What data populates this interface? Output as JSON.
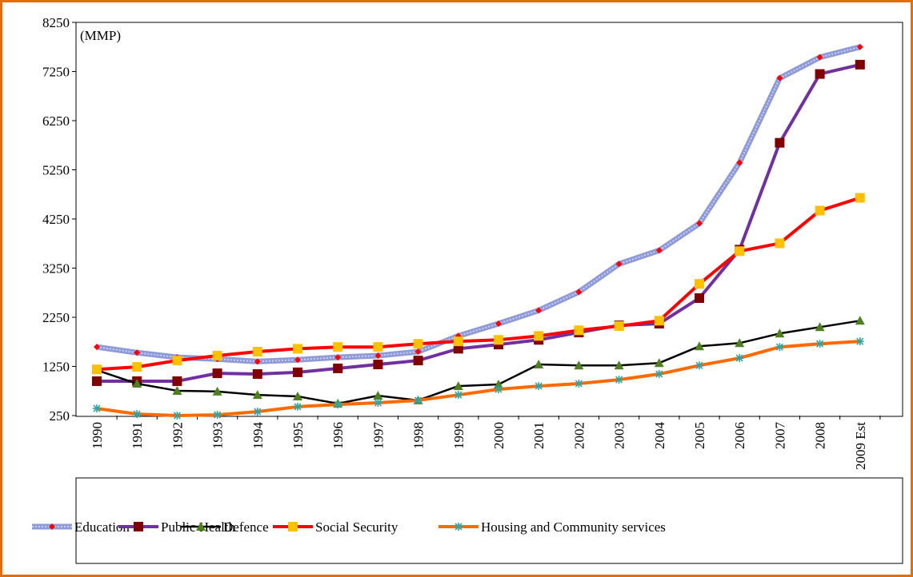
{
  "chart_data": {
    "type": "line",
    "y_label": "(MMP)",
    "categories": [
      "1990",
      "1991",
      "1992",
      "1993",
      "1994",
      "1995",
      "1996",
      "1997",
      "1998",
      "1999",
      "2000",
      "2001",
      "2002",
      "2003",
      "2004",
      "2005",
      "2006",
      "2007",
      "2008",
      "2009 Est"
    ],
    "series": [
      {
        "name": "Education",
        "color": "#8e9ad8",
        "marker": "diamond",
        "marker_color": "#ff0000",
        "values": [
          1646,
          1530,
          1435,
          1400,
          1350,
          1385,
          1435,
          1470,
          1550,
          1870,
          2120,
          2390,
          2765,
          3335,
          3610,
          4160,
          5395,
          7115,
          7540,
          7750
        ]
      },
      {
        "name": "Public Health",
        "color": "#7030a0",
        "marker": "square",
        "marker_color": "#800000",
        "values": [
          950,
          950,
          950,
          1110,
          1095,
          1130,
          1210,
          1290,
          1370,
          1610,
          1695,
          1790,
          1940,
          2085,
          2120,
          2640,
          3625,
          5800,
          7200,
          7390
        ]
      },
      {
        "name": "Defence",
        "color": "#000000",
        "marker": "triangle",
        "marker_color": "#4f7f1f",
        "values": [
          1175,
          900,
          755,
          740,
          670,
          640,
          495,
          655,
          560,
          850,
          885,
          1290,
          1270,
          1270,
          1320,
          1660,
          1725,
          1920,
          2050,
          2180
        ]
      },
      {
        "name": "Social Security",
        "color": "#ff0000",
        "marker": "square",
        "marker_color": "#ffc000",
        "values": [
          1190,
          1240,
          1370,
          1470,
          1550,
          1610,
          1645,
          1645,
          1710,
          1760,
          1790,
          1870,
          1985,
          2070,
          2180,
          2930,
          3595,
          3755,
          4420,
          4680
        ]
      },
      {
        "name": "Housing and Community services",
        "color": "#ff6a00",
        "marker": "asterisk",
        "marker_color": "#33a3a3",
        "values": [
          395,
          280,
          250,
          265,
          330,
          430,
          475,
          510,
          560,
          670,
          785,
          850,
          900,
          980,
          1095,
          1270,
          1420,
          1645,
          1710,
          1760
        ]
      }
    ],
    "ylim": [
      250,
      8250
    ],
    "yticks": [
      250,
      1250,
      2250,
      3250,
      4250,
      5250,
      6250,
      7250,
      8250
    ],
    "grid": false,
    "legend": "bottom"
  }
}
